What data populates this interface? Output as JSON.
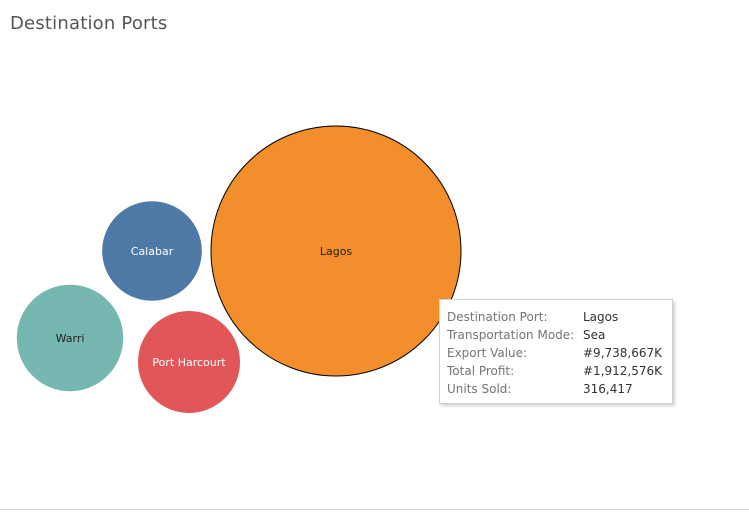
{
  "header": {
    "title": "Destination Ports"
  },
  "chart_data": {
    "type": "bubble",
    "title": "Destination Ports",
    "bubbles": [
      {
        "name": "Lagos",
        "value": 9738667,
        "color": "#f28e2b",
        "text_color": "#222222",
        "highlighted": true
      },
      {
        "name": "Calabar",
        "value": 1580000,
        "color": "#4e79a7",
        "text_color": "#ffffff",
        "highlighted": false
      },
      {
        "name": "Warri",
        "value": 1800000,
        "color": "#76b7b2",
        "text_color": "#222222",
        "highlighted": false
      },
      {
        "name": "Port Harcourt",
        "value": 1650000,
        "color": "#e15759",
        "text_color": "#ffffff",
        "highlighted": false
      }
    ]
  },
  "tooltip": {
    "rows": [
      {
        "key": "Destination Port:",
        "value": "Lagos"
      },
      {
        "key": "Transportation Mode:",
        "value": "Sea"
      },
      {
        "key": "Export Value:",
        "value": "#9,738,667K"
      },
      {
        "key": "Total Profit:",
        "value": "#1,912,576K"
      },
      {
        "key": "Units Sold:",
        "value": "316,417"
      }
    ]
  }
}
